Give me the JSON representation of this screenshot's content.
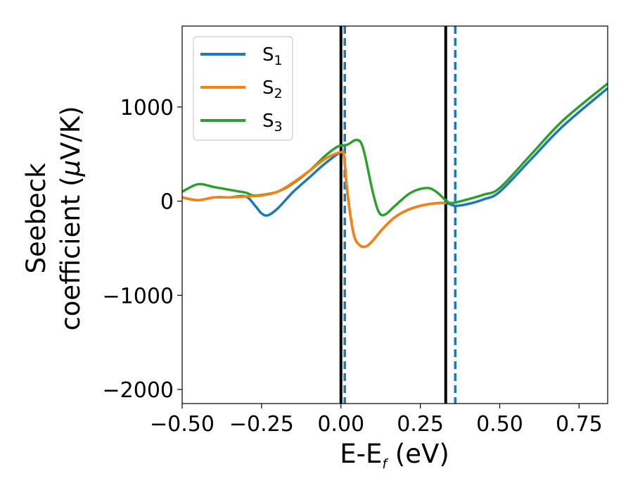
{
  "chart_data": {
    "type": "line",
    "xlabel_main": "E-E",
    "xlabel_sub": "f",
    "xlabel_unit": " (eV)",
    "ylabel_line1": "Seebeck",
    "ylabel_line2_pre": "coefficient  (",
    "ylabel_mu": "μ",
    "ylabel_line2_post": "V/K)",
    "xlim": [
      -0.5,
      0.84
    ],
    "ylim": [
      -2150,
      1860
    ],
    "x_ticks": [
      -0.5,
      -0.25,
      0.0,
      0.25,
      0.5,
      0.75
    ],
    "x_tick_labels": [
      "−0.50",
      "−0.25",
      "0.00",
      "0.25",
      "0.50",
      "0.75"
    ],
    "y_ticks": [
      -2000,
      -1000,
      0,
      1000
    ],
    "y_tick_labels": [
      "−2000",
      "−1000",
      "0",
      "1000"
    ],
    "grid": false,
    "legend_position": "top-left",
    "series": [
      {
        "name_main": "S",
        "name_sub": "1",
        "color": "#1f77b4",
        "x": [
          -0.5,
          -0.45,
          -0.4,
          -0.35,
          -0.3,
          -0.27,
          -0.25,
          -0.23,
          -0.2,
          -0.15,
          -0.1,
          -0.05,
          0.0,
          0.01,
          0.02,
          0.04,
          0.06,
          0.08,
          0.1,
          0.13,
          0.17,
          0.22,
          0.28,
          0.33,
          0.36,
          0.4,
          0.45,
          0.5,
          0.6,
          0.7,
          0.84
        ],
        "y": [
          40,
          10,
          40,
          40,
          50,
          -50,
          -130,
          -150,
          -80,
          100,
          250,
          400,
          520,
          470,
          100,
          -350,
          -470,
          -480,
          -420,
          -300,
          -170,
          -80,
          -30,
          -20,
          -50,
          -30,
          20,
          100,
          450,
          800,
          1200
        ]
      },
      {
        "name_main": "S",
        "name_sub": "2",
        "color": "#ff7f0e",
        "x": [
          -0.5,
          -0.45,
          -0.4,
          -0.35,
          -0.3,
          -0.25,
          -0.2,
          -0.15,
          -0.1,
          -0.05,
          0.0,
          0.01,
          0.02,
          0.04,
          0.06,
          0.08,
          0.1,
          0.13,
          0.17,
          0.22,
          0.28,
          0.33
        ],
        "y": [
          40,
          10,
          40,
          40,
          50,
          60,
          100,
          200,
          320,
          450,
          520,
          470,
          100,
          -350,
          -470,
          -480,
          -420,
          -300,
          -170,
          -80,
          -30,
          -20
        ]
      },
      {
        "name_main": "S",
        "name_sub": "3",
        "color": "#2ca02c",
        "x": [
          -0.5,
          -0.45,
          -0.4,
          -0.35,
          -0.3,
          -0.27,
          -0.2,
          -0.15,
          -0.1,
          -0.05,
          -0.01,
          0.02,
          0.05,
          0.07,
          0.1,
          0.12,
          0.14,
          0.17,
          0.22,
          0.27,
          0.3,
          0.33,
          0.35,
          0.4,
          0.45,
          0.5,
          0.6,
          0.7,
          0.84
        ],
        "y": [
          100,
          180,
          150,
          120,
          90,
          60,
          100,
          190,
          320,
          480,
          580,
          600,
          650,
          560,
          100,
          -120,
          -140,
          -50,
          90,
          140,
          100,
          10,
          -20,
          20,
          70,
          140,
          500,
          860,
          1250
        ]
      }
    ],
    "vlines": [
      {
        "x": 0.0,
        "style": "solid",
        "color": "#000000"
      },
      {
        "x": 0.33,
        "style": "solid",
        "color": "#000000"
      },
      {
        "x": 0.012,
        "style": "dashed",
        "color": "#1f77b4"
      },
      {
        "x": 0.36,
        "style": "dashed",
        "color": "#1f77b4"
      }
    ]
  }
}
